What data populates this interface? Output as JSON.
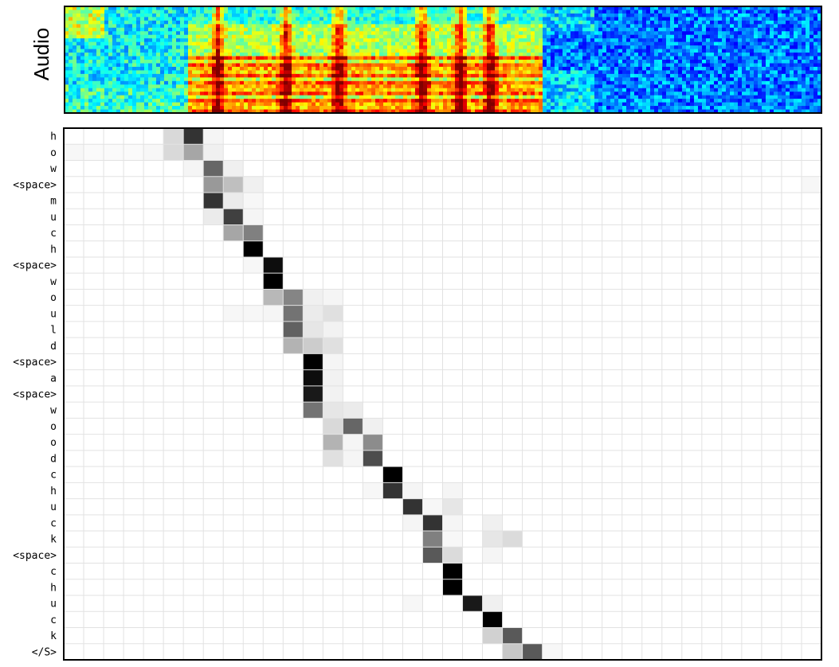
{
  "audio_panel": {
    "label": "Audio"
  },
  "chart_data": {
    "type": "heatmap",
    "title": "",
    "xlabel": "",
    "ylabel": "",
    "grid": true,
    "colormap": "gray-reversed",
    "num_columns": 38,
    "rows": [
      "h",
      "o",
      "w",
      "<space>",
      "m",
      "u",
      "c",
      "h",
      "<space>",
      "w",
      "o",
      "u",
      "l",
      "d",
      "<space>",
      "a",
      "<space>",
      "w",
      "o",
      "o",
      "d",
      "c",
      "h",
      "u",
      "c",
      "k",
      "<space>",
      "c",
      "h",
      "u",
      "c",
      "k",
      "</S>"
    ],
    "cells": [
      [
        [
          5,
          0.15
        ],
        [
          6,
          0.8
        ],
        [
          7,
          0.04
        ]
      ],
      [
        [
          0,
          0.03
        ],
        [
          1,
          0.02
        ],
        [
          2,
          0.02
        ],
        [
          3,
          0.02
        ],
        [
          4,
          0.03
        ],
        [
          5,
          0.15
        ],
        [
          6,
          0.35
        ],
        [
          7,
          0.06
        ]
      ],
      [
        [
          6,
          0.04
        ],
        [
          7,
          0.6
        ],
        [
          8,
          0.06
        ]
      ],
      [
        [
          7,
          0.4
        ],
        [
          8,
          0.25
        ],
        [
          9,
          0.06
        ],
        [
          37,
          0.03
        ]
      ],
      [
        [
          7,
          0.8
        ],
        [
          8,
          0.08
        ],
        [
          9,
          0.03
        ]
      ],
      [
        [
          7,
          0.08
        ],
        [
          8,
          0.75
        ],
        [
          9,
          0.04
        ]
      ],
      [
        [
          8,
          0.35
        ],
        [
          9,
          0.5
        ]
      ],
      [
        [
          9,
          1.0
        ]
      ],
      [
        [
          9,
          0.03
        ],
        [
          10,
          0.95
        ]
      ],
      [
        [
          10,
          1.0
        ]
      ],
      [
        [
          10,
          0.28
        ],
        [
          11,
          0.48
        ],
        [
          12,
          0.06
        ],
        [
          13,
          0.04
        ]
      ],
      [
        [
          8,
          0.03
        ],
        [
          9,
          0.03
        ],
        [
          10,
          0.04
        ],
        [
          11,
          0.55
        ],
        [
          12,
          0.08
        ],
        [
          13,
          0.12
        ]
      ],
      [
        [
          11,
          0.62
        ],
        [
          12,
          0.1
        ],
        [
          13,
          0.05
        ]
      ],
      [
        [
          11,
          0.3
        ],
        [
          12,
          0.2
        ],
        [
          13,
          0.12
        ]
      ],
      [
        [
          12,
          1.0
        ],
        [
          13,
          0.04
        ]
      ],
      [
        [
          12,
          0.95
        ],
        [
          13,
          0.05
        ]
      ],
      [
        [
          12,
          0.9
        ],
        [
          13,
          0.05
        ]
      ],
      [
        [
          12,
          0.55
        ],
        [
          13,
          0.1
        ],
        [
          14,
          0.08
        ]
      ],
      [
        [
          13,
          0.15
        ],
        [
          14,
          0.6
        ],
        [
          15,
          0.06
        ]
      ],
      [
        [
          13,
          0.3
        ],
        [
          14,
          0.04
        ],
        [
          15,
          0.45
        ]
      ],
      [
        [
          13,
          0.12
        ],
        [
          14,
          0.04
        ],
        [
          15,
          0.7
        ]
      ],
      [
        [
          16,
          1.0
        ]
      ],
      [
        [
          15,
          0.03
        ],
        [
          16,
          0.8
        ],
        [
          17,
          0.04
        ],
        [
          19,
          0.04
        ]
      ],
      [
        [
          17,
          0.8
        ],
        [
          18,
          0.03
        ],
        [
          19,
          0.1
        ]
      ],
      [
        [
          17,
          0.04
        ],
        [
          18,
          0.8
        ],
        [
          19,
          0.04
        ],
        [
          21,
          0.06
        ]
      ],
      [
        [
          18,
          0.5
        ],
        [
          19,
          0.03
        ],
        [
          21,
          0.1
        ],
        [
          22,
          0.14
        ]
      ],
      [
        [
          18,
          0.65
        ],
        [
          19,
          0.14
        ],
        [
          21,
          0.04
        ]
      ],
      [
        [
          19,
          1.0
        ]
      ],
      [
        [
          19,
          1.0
        ]
      ],
      [
        [
          17,
          0.03
        ],
        [
          20,
          0.9
        ],
        [
          21,
          0.06
        ]
      ],
      [
        [
          21,
          1.0
        ]
      ],
      [
        [
          21,
          0.18
        ],
        [
          22,
          0.65
        ]
      ],
      [
        [
          22,
          0.22
        ],
        [
          23,
          0.65
        ],
        [
          24,
          0.03
        ]
      ]
    ]
  }
}
